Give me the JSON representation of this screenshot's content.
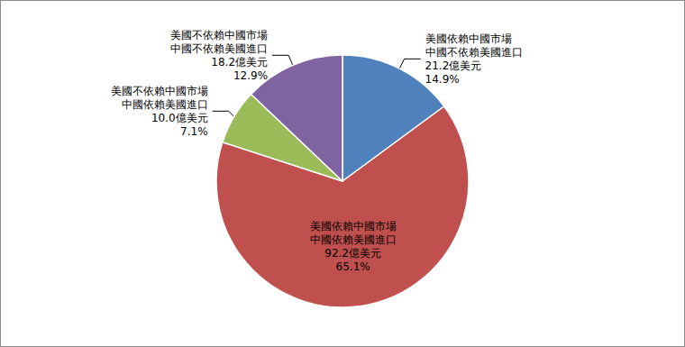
{
  "chart_data": {
    "type": "pie",
    "categories": [
      "美國依賴中國市場\n中國不依賴美國進口",
      "美國依賴中國市場\n中國依賴美國進口",
      "美國不依賴中國市場\n中國依賴美國進口",
      "美國不依賴中國市場\n中國不依賴美國進口"
    ],
    "values": [
      14.9,
      65.1,
      7.1,
      12.9
    ],
    "value_labels": [
      "14.9%",
      "65.1%",
      "7.1%",
      "12.9%"
    ],
    "amounts": [
      21.2,
      92.2,
      10.0,
      18.2
    ],
    "amount_labels": [
      "21.2億美元",
      "92.2億美元",
      "10.0億美元",
      "18.2億美元"
    ],
    "colors": [
      "#4f81bd",
      "#c0504d",
      "#9bbb59",
      "#8064a2"
    ],
    "data_labels": true
  }
}
